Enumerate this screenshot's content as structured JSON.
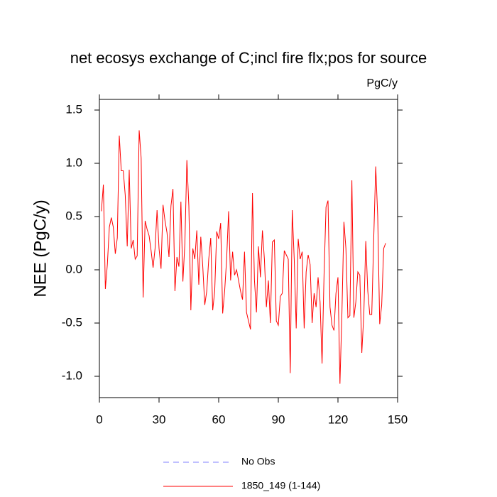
{
  "chart_data": {
    "type": "line",
    "title": "net ecosys exchange of C;incl fire flx;pos for source",
    "units": "PgC/y",
    "y_label": "NEE  (PgC/y)",
    "xlim": [
      0,
      150
    ],
    "ylim": [
      -1.2,
      1.6
    ],
    "xticks": [
      0,
      30,
      60,
      90,
      120,
      150
    ],
    "yticks": [
      {
        "value": -1.0,
        "label": "-1.0"
      },
      {
        "value": -0.5,
        "label": "-0.5"
      },
      {
        "value": 0,
        "label": "0.0"
      },
      {
        "value": 0.5,
        "label": "0.5"
      },
      {
        "value": 1.0,
        "label": "1.0"
      },
      {
        "value": 1.5,
        "label": "1.5"
      }
    ],
    "x": [
      1,
      2,
      3,
      4,
      5,
      6,
      7,
      8,
      9,
      10,
      11,
      12,
      13,
      14,
      15,
      16,
      17,
      18,
      19,
      20,
      21,
      22,
      23,
      24,
      25,
      26,
      27,
      28,
      29,
      30,
      31,
      32,
      33,
      34,
      35,
      36,
      37,
      38,
      39,
      40,
      41,
      42,
      43,
      44,
      45,
      46,
      47,
      48,
      49,
      50,
      51,
      52,
      53,
      54,
      55,
      56,
      57,
      58,
      59,
      60,
      61,
      62,
      63,
      64,
      65,
      66,
      67,
      68,
      69,
      70,
      71,
      72,
      73,
      74,
      75,
      76,
      77,
      78,
      79,
      80,
      81,
      82,
      83,
      84,
      85,
      86,
      87,
      88,
      89,
      90,
      91,
      92,
      93,
      94,
      95,
      96,
      97,
      98,
      99,
      100,
      101,
      102,
      103,
      104,
      105,
      106,
      107,
      108,
      109,
      110,
      111,
      112,
      113,
      114,
      115,
      116,
      117,
      118,
      119,
      120,
      121,
      122,
      123,
      124,
      125,
      126,
      127,
      128,
      129,
      130,
      131,
      132,
      133,
      134,
      135,
      136,
      137,
      138,
      139,
      140,
      141,
      142,
      143,
      144
    ],
    "series": [
      {
        "name": "1850_149 (1-144)",
        "color": "#ff0000",
        "values": [
          0.55,
          0.8,
          -0.18,
          0.05,
          0.4,
          0.49,
          0.4,
          0.15,
          0.3,
          1.26,
          0.93,
          0.93,
          0.7,
          0.22,
          0.94,
          0.2,
          0.28,
          0.1,
          0.13,
          1.31,
          1.05,
          -0.26,
          0.46,
          0.38,
          0.32,
          0.18,
          0.02,
          0.2,
          0.56,
          0.2,
          0.01,
          0.61,
          0.46,
          0.35,
          0.12,
          0.6,
          0.76,
          -0.2,
          0.12,
          0.03,
          0.64,
          -0.11,
          0.25,
          1.03,
          0.6,
          -0.38,
          0.2,
          0.1,
          0.37,
          -0.14,
          0.31,
          0.03,
          -0.33,
          -0.2,
          0.1,
          0.3,
          -0.38,
          -0.2,
          0.36,
          0.29,
          0.44,
          -0.41,
          -0.2,
          0.1,
          0.55,
          -0.1,
          0.17,
          -0.05,
          0.0,
          -0.1,
          -0.2,
          -0.28,
          0.17,
          -0.4,
          -0.48,
          -0.56,
          0.72,
          -0.1,
          -0.4,
          0.22,
          -0.07,
          0.37,
          0.1,
          -0.35,
          -0.1,
          -0.5,
          0.26,
          0.28,
          -0.48,
          -0.52,
          -0.25,
          -0.22,
          0.18,
          0.14,
          0.1,
          -0.97,
          0.56,
          0.1,
          -0.55,
          0.29,
          0.1,
          0.17,
          -0.55,
          -0.02,
          0.14,
          0.05,
          -0.5,
          -0.22,
          -0.35,
          -0.07,
          -0.3,
          -0.88,
          -0.05,
          0.59,
          0.65,
          -0.35,
          -0.52,
          -0.57,
          -0.22,
          -0.07,
          -1.07,
          -0.4,
          0.45,
          0.2,
          -0.45,
          -0.43,
          0.84,
          -0.45,
          -0.3,
          -0.02,
          -0.05,
          -0.78,
          -0.42,
          0.27,
          -0.2,
          -0.42,
          -0.42,
          0.3,
          0.97,
          0.5,
          -0.51,
          -0.33,
          0.2,
          0.25
        ]
      }
    ],
    "extra_legend": {
      "name": "No Obs",
      "color": "#8080ff",
      "dash": "8,6"
    }
  }
}
